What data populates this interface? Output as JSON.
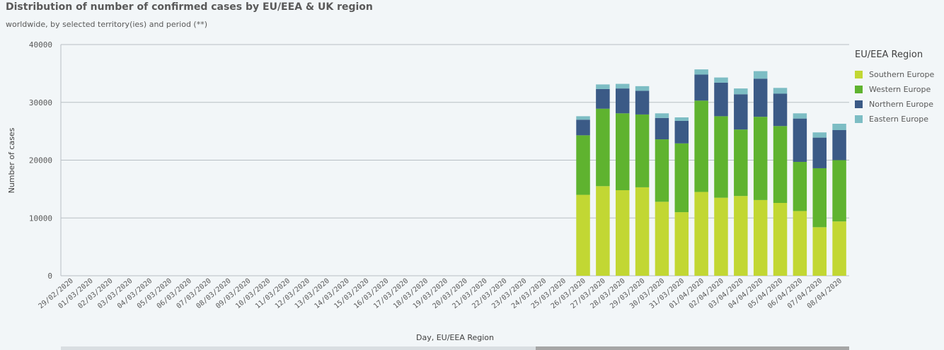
{
  "header": {
    "title": "Distribution of number of confirmed cases by EU/EEA & UK region",
    "subtitle": "worldwide, by selected territory(ies) and period (**)"
  },
  "legend": {
    "title": "EU/EEA Region"
  },
  "chart_data": {
    "type": "bar",
    "stacked": true,
    "xlabel": "Day, EU/EEA Region",
    "ylabel": "Number of cases",
    "ylim": [
      0,
      40000
    ],
    "yticks": [
      0,
      10000,
      20000,
      30000,
      40000
    ],
    "grid": true,
    "legend_position": "right",
    "categories": [
      "29/02/2020",
      "01/03/2020",
      "02/03/2020",
      "03/03/2020",
      "04/03/2020",
      "05/03/2020",
      "06/03/2020",
      "07/03/2020",
      "08/03/2020",
      "09/03/2020",
      "10/03/2020",
      "11/03/2020",
      "12/03/2020",
      "13/03/2020",
      "14/03/2020",
      "15/03/2020",
      "16/03/2020",
      "17/03/2020",
      "18/03/2020",
      "19/03/2020",
      "20/03/2020",
      "21/03/2020",
      "22/03/2020",
      "23/03/2020",
      "24/03/2020",
      "25/03/2020",
      "26/03/2020",
      "27/03/2020",
      "28/03/2020",
      "29/03/2020",
      "30/03/2020",
      "31/03/2020",
      "01/04/2020",
      "02/04/2020",
      "03/04/2020",
      "04/04/2020",
      "05/04/2020",
      "06/04/2020",
      "07/04/2020",
      "08/04/2020"
    ],
    "series": [
      {
        "name": "Southern Europe",
        "color": "#c2d733",
        "values": [
          0,
          0,
          0,
          0,
          0,
          0,
          0,
          0,
          0,
          0,
          0,
          0,
          0,
          0,
          0,
          0,
          0,
          0,
          0,
          0,
          0,
          0,
          0,
          0,
          0,
          0,
          14000,
          15500,
          14800,
          15300,
          12800,
          11000,
          14500,
          13500,
          13800,
          13100,
          12600,
          11200,
          8400,
          9400
        ]
      },
      {
        "name": "Western Europe",
        "color": "#5fb32f",
        "values": [
          0,
          0,
          0,
          0,
          0,
          0,
          0,
          0,
          0,
          0,
          0,
          0,
          0,
          0,
          0,
          0,
          0,
          0,
          0,
          0,
          0,
          0,
          0,
          0,
          0,
          0,
          10300,
          13400,
          13300,
          12600,
          10800,
          11900,
          15800,
          14100,
          11500,
          14400,
          13300,
          8500,
          10200,
          10600
        ]
      },
      {
        "name": "Northern Europe",
        "color": "#3b5a86",
        "values": [
          0,
          0,
          0,
          0,
          0,
          0,
          0,
          0,
          0,
          0,
          0,
          0,
          0,
          0,
          0,
          0,
          0,
          0,
          0,
          0,
          0,
          0,
          0,
          0,
          0,
          0,
          2700,
          3400,
          4300,
          4100,
          3700,
          3900,
          4500,
          5800,
          6100,
          6600,
          5600,
          7500,
          5300,
          5200
        ]
      },
      {
        "name": "Eastern Europe",
        "color": "#7dbdc4",
        "values": [
          0,
          0,
          0,
          0,
          0,
          0,
          0,
          0,
          0,
          0,
          0,
          0,
          0,
          0,
          0,
          0,
          0,
          0,
          0,
          0,
          0,
          0,
          0,
          0,
          0,
          0,
          600,
          800,
          800,
          800,
          800,
          600,
          900,
          900,
          1000,
          1300,
          1000,
          900,
          900,
          1100
        ]
      }
    ]
  }
}
